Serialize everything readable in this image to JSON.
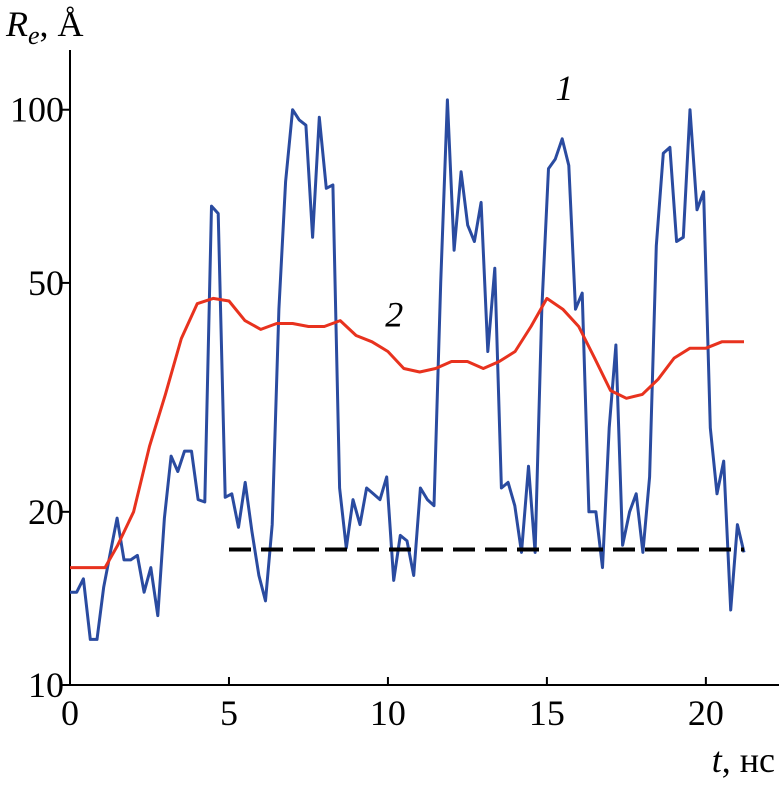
{
  "chart_data": {
    "type": "line",
    "ylabel": [
      "R",
      "e",
      ", Å"
    ],
    "xlabel": [
      "t",
      ", нс"
    ],
    "xlim": [
      0,
      22.3
    ],
    "xticks": [
      0,
      5,
      10,
      15,
      20
    ],
    "ylim": [
      10,
      127
    ],
    "yticks": [
      10,
      20,
      50,
      100
    ],
    "ylog": true,
    "series": [
      {
        "name": "1",
        "color": "#2a4ba0",
        "style": "solid",
        "x": [
          0,
          0.21,
          0.42,
          0.64,
          0.85,
          1.06,
          1.27,
          1.48,
          1.7,
          1.91,
          2.12,
          2.33,
          2.54,
          2.76,
          2.97,
          3.18,
          3.39,
          3.6,
          3.82,
          4.03,
          4.24,
          4.45,
          4.66,
          4.88,
          5.09,
          5.3,
          5.51,
          5.72,
          5.94,
          6.15,
          6.36,
          6.57,
          6.78,
          7.0,
          7.21,
          7.42,
          7.63,
          7.84,
          8.06,
          8.27,
          8.48,
          8.69,
          8.9,
          9.12,
          9.33,
          9.54,
          9.75,
          9.96,
          10.18,
          10.39,
          10.6,
          10.81,
          11.02,
          11.24,
          11.45,
          11.66,
          11.87,
          12.08,
          12.3,
          12.51,
          12.72,
          12.93,
          13.14,
          13.36,
          13.57,
          13.78,
          13.99,
          14.2,
          14.42,
          14.63,
          14.84,
          15.05,
          15.26,
          15.48,
          15.69,
          15.9,
          16.11,
          16.32,
          16.54,
          16.75,
          16.96,
          17.17,
          17.38,
          17.6,
          17.81,
          18.02,
          18.23,
          18.44,
          18.66,
          18.87,
          19.08,
          19.29,
          19.5,
          19.72,
          19.93,
          20.14,
          20.35,
          20.56,
          20.78,
          20.99,
          21.2
        ],
        "values": [
          14.5,
          14.5,
          15.3,
          12,
          12,
          14.8,
          17,
          19.5,
          16.5,
          16.5,
          16.8,
          14.5,
          16,
          13.2,
          19.5,
          25,
          23.5,
          25.5,
          25.5,
          21,
          20.8,
          68,
          66,
          21.2,
          21.5,
          18.8,
          22.5,
          18.5,
          15.5,
          14,
          19,
          45,
          75,
          100,
          96,
          94,
          60,
          97,
          73,
          74,
          22,
          17.3,
          21,
          19,
          22,
          21.5,
          21,
          23,
          15.2,
          18.2,
          17.8,
          15.5,
          22,
          21,
          20.5,
          50,
          104,
          57,
          78,
          63,
          59,
          69,
          38,
          53,
          22,
          22.5,
          20.5,
          17,
          24,
          17,
          45,
          79,
          82,
          89,
          80,
          45,
          48,
          20,
          20,
          16,
          28,
          39,
          17.5,
          20,
          21.5,
          17,
          23,
          58,
          84,
          86,
          59,
          60,
          100,
          67,
          72,
          28,
          21.5,
          24.5,
          13.5,
          19,
          17
        ]
      },
      {
        "name": "2",
        "color": "#e8321e",
        "style": "solid",
        "x": [
          0,
          1.1,
          1.5,
          2,
          2.5,
          3,
          3.5,
          4,
          4.5,
          5,
          5.5,
          6,
          6.5,
          7,
          7.5,
          8,
          8.5,
          9,
          9.5,
          10,
          10.5,
          11,
          11.5,
          12,
          12.5,
          13,
          13.5,
          14,
          14.5,
          15,
          15.5,
          16,
          16.5,
          17,
          17.5,
          18,
          18.5,
          19,
          19.5,
          20,
          20.5,
          21.2
        ],
        "values": [
          16,
          16,
          17.5,
          20,
          26,
          32,
          40,
          46,
          47,
          46.5,
          43,
          41.5,
          42.5,
          42.5,
          42,
          42,
          43,
          40.5,
          39.5,
          38,
          35.5,
          35,
          35.5,
          36.5,
          36.5,
          35.5,
          36.5,
          38,
          42,
          47,
          45,
          42,
          37,
          32.5,
          31.5,
          32,
          34,
          37,
          38.5,
          38.5,
          39.5,
          39.5
        ]
      },
      {
        "name": null,
        "color": "#000000",
        "style": "dashed",
        "x": [
          5,
          21.2
        ],
        "values": [
          17.2,
          17.2
        ]
      }
    ],
    "annotations": [
      {
        "text": "1",
        "x": 15.55,
        "y": 104
      },
      {
        "text": "2",
        "x": 10.2,
        "y": 42
      }
    ]
  }
}
